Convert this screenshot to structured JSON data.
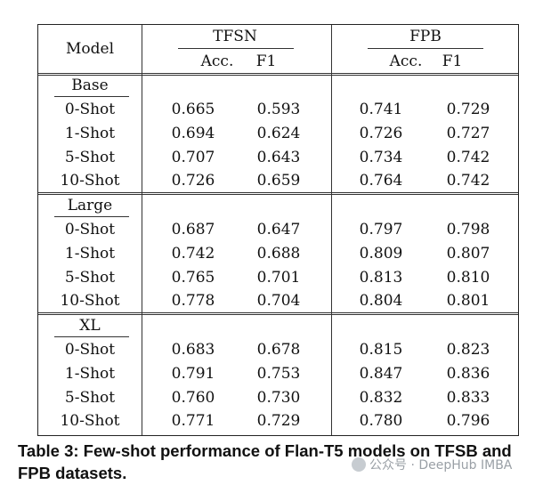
{
  "table": {
    "header": {
      "model": "Model",
      "groups": [
        "TFSN",
        "FPB"
      ],
      "metrics": [
        "Acc.",
        "F1",
        "Acc.",
        "F1"
      ]
    },
    "sections": [
      {
        "name": "Base",
        "rows": [
          {
            "label": "0-Shot",
            "values": [
              "0.665",
              "0.593",
              "0.741",
              "0.729"
            ]
          },
          {
            "label": "1-Shot",
            "values": [
              "0.694",
              "0.624",
              "0.726",
              "0.727"
            ]
          },
          {
            "label": "5-Shot",
            "values": [
              "0.707",
              "0.643",
              "0.734",
              "0.742"
            ]
          },
          {
            "label": "10-Shot",
            "values": [
              "0.726",
              "0.659",
              "0.764",
              "0.742"
            ]
          }
        ]
      },
      {
        "name": "Large",
        "rows": [
          {
            "label": "0-Shot",
            "values": [
              "0.687",
              "0.647",
              "0.797",
              "0.798"
            ]
          },
          {
            "label": "1-Shot",
            "values": [
              "0.742",
              "0.688",
              "0.809",
              "0.807"
            ]
          },
          {
            "label": "5-Shot",
            "values": [
              "0.765",
              "0.701",
              "0.813",
              "0.810"
            ]
          },
          {
            "label": "10-Shot",
            "values": [
              "0.778",
              "0.704",
              "0.804",
              "0.801"
            ]
          }
        ]
      },
      {
        "name": "XL",
        "rows": [
          {
            "label": "0-Shot",
            "values": [
              "0.683",
              "0.678",
              "0.815",
              "0.823"
            ]
          },
          {
            "label": "1-Shot",
            "values": [
              "0.791",
              "0.753",
              "0.847",
              "0.836"
            ]
          },
          {
            "label": "5-Shot",
            "values": [
              "0.760",
              "0.730",
              "0.832",
              "0.833"
            ]
          },
          {
            "label": "10-Shot",
            "values": [
              "0.771",
              "0.729",
              "0.780",
              "0.796"
            ]
          }
        ]
      }
    ]
  },
  "caption": "Table 3: Few-shot performance of Flan-T5 models on TFSB and FPB datasets.",
  "watermark": "公众号 · DeepHub IMBA"
}
